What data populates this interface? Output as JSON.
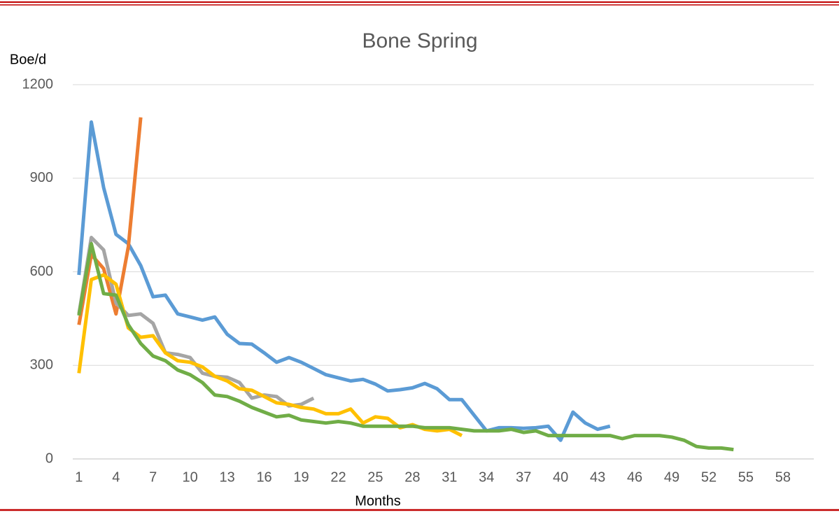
{
  "chart_data": {
    "type": "line",
    "title": "Bone Spring",
    "y_label": "Boe/d",
    "x_label": "Months",
    "categories": [
      1,
      null,
      null,
      4,
      null,
      null,
      7,
      null,
      null,
      10,
      null,
      null,
      13,
      null,
      null,
      16,
      null,
      null,
      19,
      null,
      null,
      22,
      null,
      null,
      25,
      null,
      null,
      28,
      null,
      null,
      31,
      null,
      null,
      34,
      null,
      null,
      37,
      null,
      null,
      40,
      null,
      null,
      43,
      null,
      null,
      46,
      null,
      null,
      49,
      null,
      null,
      52,
      null,
      null,
      55,
      null,
      null,
      58,
      null,
      null
    ],
    "ylim": [
      0,
      1200
    ],
    "yticks": [
      0,
      300,
      600,
      900,
      1200
    ],
    "grid": true,
    "series": [
      {
        "color": "#5b9bd5",
        "values": [
          590,
          1080,
          870,
          720,
          690,
          620,
          520,
          525,
          465,
          455,
          445,
          455,
          400,
          370,
          368,
          340,
          310,
          325,
          310,
          290,
          270,
          260,
          250,
          255,
          240,
          218,
          222,
          228,
          242,
          225,
          190,
          190,
          140,
          90,
          100,
          100,
          98,
          100,
          105,
          60,
          150,
          115,
          95,
          105,
          null,
          null,
          null,
          null,
          null,
          null,
          null,
          null,
          null,
          null,
          null,
          null,
          null,
          null,
          null,
          null
        ]
      },
      {
        "color": "#ed7d31",
        "values": [
          430,
          655,
          610,
          465,
          680,
          1095,
          null,
          null,
          null,
          null,
          null,
          null,
          null,
          null,
          null,
          null,
          null,
          null,
          null,
          null,
          null,
          null,
          null,
          null,
          null,
          null,
          null,
          null,
          null,
          null,
          null,
          null,
          null,
          null,
          null,
          null,
          null,
          null,
          null,
          null,
          null,
          null,
          null,
          null,
          null,
          null,
          null,
          null,
          null,
          null,
          null,
          null,
          null,
          null,
          null,
          null,
          null,
          null,
          null,
          null
        ]
      },
      {
        "color": "#a5a5a5",
        "values": [
          465,
          710,
          670,
          500,
          460,
          465,
          435,
          340,
          335,
          325,
          275,
          265,
          262,
          245,
          195,
          205,
          200,
          170,
          175,
          195,
          null,
          null,
          null,
          null,
          null,
          null,
          null,
          null,
          null,
          null,
          null,
          null,
          null,
          null,
          null,
          null,
          null,
          null,
          null,
          null,
          null,
          null,
          null,
          null,
          null,
          null,
          null,
          null,
          null,
          null,
          null,
          null,
          null,
          null,
          null,
          null,
          null,
          null,
          null,
          null
        ]
      },
      {
        "color": "#ffc000",
        "values": [
          275,
          575,
          590,
          560,
          420,
          390,
          395,
          340,
          315,
          310,
          295,
          265,
          250,
          225,
          220,
          200,
          180,
          175,
          165,
          160,
          145,
          145,
          160,
          115,
          135,
          130,
          100,
          110,
          95,
          90,
          95,
          75,
          null,
          null,
          null,
          null,
          null,
          null,
          null,
          null,
          null,
          null,
          null,
          null,
          null,
          null,
          null,
          null,
          null,
          null,
          null,
          null,
          null,
          null,
          null,
          null,
          null,
          null,
          null,
          null
        ]
      },
      {
        "color": "#70ad47",
        "values": [
          460,
          690,
          530,
          525,
          430,
          370,
          330,
          315,
          285,
          270,
          245,
          205,
          200,
          185,
          165,
          150,
          135,
          140,
          125,
          120,
          115,
          120,
          115,
          105,
          105,
          105,
          105,
          105,
          100,
          100,
          100,
          95,
          90,
          90,
          90,
          95,
          85,
          90,
          75,
          75,
          75,
          75,
          75,
          75,
          65,
          75,
          75,
          75,
          70,
          60,
          40,
          35,
          35,
          30,
          null,
          null,
          null,
          null,
          null,
          null
        ]
      }
    ]
  }
}
